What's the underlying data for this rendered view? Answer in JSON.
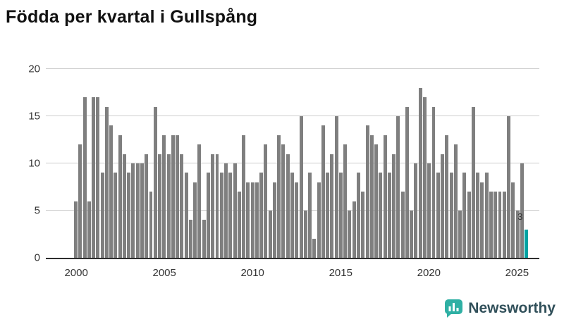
{
  "title": "Födda per kvartal i Gullspång",
  "branding": {
    "name": "Newsworthy",
    "icon": "newsworthy-bar-chart-bubble-icon"
  },
  "colors": {
    "bar": "#7f7f7f",
    "highlight": "#00a2a2",
    "axis": "#2e2e2e",
    "grid": "#cccccc",
    "brand_icon": "#2fb0a4",
    "brand_text": "#31505a"
  },
  "chart_data": {
    "type": "bar",
    "title": "Födda per kvartal i Gullspång",
    "xlabel": "",
    "ylabel": "",
    "ylim": [
      0,
      20
    ],
    "y_ticks": [
      0,
      5,
      10,
      15,
      20
    ],
    "grid": true,
    "x_tick_labels": [
      "2000",
      "2005",
      "2010",
      "2015",
      "2020",
      "2025"
    ],
    "x_tick_indices": [
      0,
      20,
      40,
      60,
      80,
      100
    ],
    "period_start": "2000 Q1",
    "period_end": "2025 Q3",
    "values": [
      6,
      12,
      17,
      6,
      17,
      17,
      9,
      16,
      14,
      9,
      13,
      11,
      9,
      10,
      10,
      10,
      11,
      7,
      16,
      11,
      13,
      11,
      13,
      13,
      11,
      9,
      4,
      8,
      12,
      4,
      9,
      11,
      11,
      9,
      10,
      9,
      10,
      7,
      13,
      8,
      8,
      8,
      9,
      12,
      5,
      8,
      13,
      12,
      11,
      9,
      8,
      15,
      5,
      9,
      2,
      8,
      14,
      9,
      11,
      15,
      9,
      12,
      5,
      6,
      9,
      7,
      14,
      13,
      12,
      9,
      13,
      9,
      11,
      15,
      7,
      16,
      5,
      10,
      18,
      17,
      10,
      16,
      9,
      11,
      13,
      9,
      12,
      5,
      9,
      7,
      16,
      9,
      8,
      9,
      7,
      7,
      7,
      7,
      15,
      8,
      5,
      10,
      3
    ],
    "highlight_last": true,
    "last_value_label": "3"
  }
}
